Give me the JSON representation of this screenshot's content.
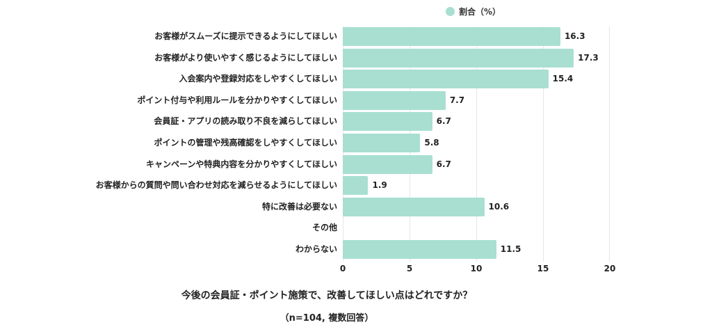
{
  "legend": {
    "label": "割合（%）",
    "color": "#a8dfd1"
  },
  "title": "今後の会員証・ポイント施策で、改善してほしい点はどれですか？",
  "subtitle": "（n=104, 複数回答）",
  "axis": {
    "ticks": [
      "0",
      "5",
      "10",
      "15",
      "20"
    ]
  },
  "categories": [
    {
      "label": "お客様がスムーズに提示できるようにしてほしい",
      "value": 16.3,
      "display": "16.3"
    },
    {
      "label": "お客様がより使いやすく感じるようにしてほしい",
      "value": 17.3,
      "display": "17.3"
    },
    {
      "label": "入会案内や登録対応をしやすくしてほしい",
      "value": 15.4,
      "display": "15.4"
    },
    {
      "label": "ポイント付与や利用ルールを分かりやすくしてほしい",
      "value": 7.7,
      "display": "7.7"
    },
    {
      "label": "会員証・アプリの読み取り不良を減らしてほしい",
      "value": 6.7,
      "display": "6.7"
    },
    {
      "label": "ポイントの管理や残高確認をしやすくしてほしい",
      "value": 5.8,
      "display": "5.8"
    },
    {
      "label": "キャンペーンや特典内容を分かりやすくしてほしい",
      "value": 6.7,
      "display": "6.7"
    },
    {
      "label": "お客様からの質問や問い合わせ対応を減らせるようにしてほしい",
      "value": 1.9,
      "display": "1.9"
    },
    {
      "label": "特に改善は必要ない",
      "value": 10.6,
      "display": "10.6"
    },
    {
      "label": "その他",
      "value": 0,
      "display": ""
    },
    {
      "label": "わからない",
      "value": 11.5,
      "display": "11.5"
    }
  ],
  "chart_data": {
    "type": "bar",
    "orientation": "horizontal",
    "title": "今後の会員証・ポイント施策で、改善してほしい点はどれですか？",
    "subtitle": "（n=104, 複数回答）",
    "categories": [
      "お客様がスムーズに提示できるようにしてほしい",
      "お客様がより使いやすく感じるようにしてほしい",
      "入会案内や登録対応をしやすくしてほしい",
      "ポイント付与や利用ルールを分かりやすくしてほしい",
      "会員証・アプリの読み取り不良を減らしてほしい",
      "ポイントの管理や残高確認をしやすくしてほしい",
      "キャンペーンや特典内容を分かりやすくしてほしい",
      "お客様からの質問や問い合わせ対応を減らせるようにしてほしい",
      "特に改善は必要ない",
      "その他",
      "わからない"
    ],
    "series": [
      {
        "name": "割合（%）",
        "values": [
          16.3,
          17.3,
          15.4,
          7.7,
          6.7,
          5.8,
          6.7,
          1.9,
          10.6,
          0,
          11.5
        ]
      }
    ],
    "xlabel": "",
    "ylabel": "",
    "xlim": [
      0,
      20
    ],
    "xticks": [
      0,
      5,
      10,
      15,
      20
    ],
    "grid": true,
    "legend_position": "top",
    "data_labels": true
  }
}
